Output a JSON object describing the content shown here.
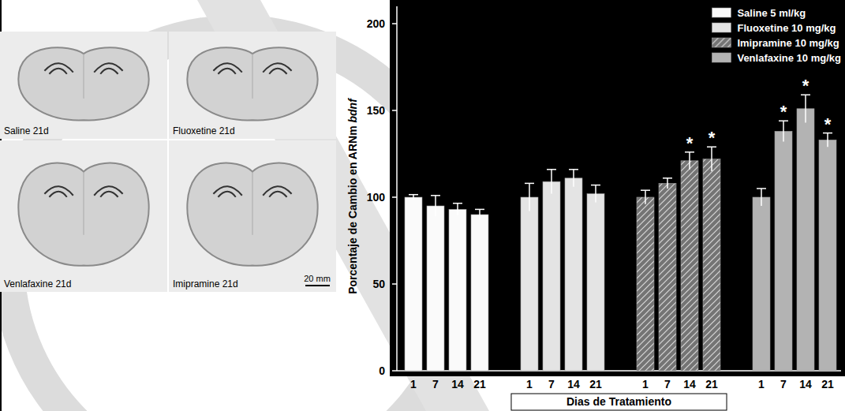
{
  "chart_data": {
    "type": "bar",
    "categories": [
      "1",
      "7",
      "14",
      "21"
    ],
    "xlabel": "Dias de Tratamiento",
    "ylabel": "Porcentaje de Cambio en ARNm",
    "ylabel_gene": "bdnf",
    "ylim": [
      0,
      210
    ],
    "yticks": [
      0,
      50,
      100,
      150,
      200
    ],
    "grid": false,
    "legend": "upper right",
    "series": [
      {
        "name": "Saline 5 ml/kg",
        "color": "#fafafa",
        "values": [
          100,
          95,
          93,
          90
        ],
        "errors": [
          1.5,
          6,
          3.5,
          3
        ],
        "marks": [
          null,
          null,
          null,
          null
        ]
      },
      {
        "name": "Fluoxetine 10 mg/kg",
        "color": "#e4e4e4",
        "values": [
          100,
          109,
          111,
          102
        ],
        "errors": [
          8,
          7,
          5,
          5
        ],
        "marks": [
          null,
          null,
          null,
          null
        ]
      },
      {
        "name": "Imipramine 10 mg/kg",
        "color": "#747474",
        "line_style": "hatched",
        "values": [
          100,
          108,
          121,
          122
        ],
        "errors": [
          4,
          3,
          5,
          7
        ],
        "marks": [
          null,
          null,
          "*",
          "*"
        ]
      },
      {
        "name": "Venlafaxine 10 mg/kg",
        "color": "#b3b3b3",
        "values": [
          100,
          138,
          151,
          133
        ],
        "errors": [
          5,
          6,
          8,
          4
        ],
        "marks": [
          null,
          "*",
          "*",
          "*"
        ]
      }
    ]
  },
  "image_panels": {
    "panels": [
      "Saline 21d",
      "Fluoxetine 21d",
      "Venlafaxine 21d",
      "Imipramine 21d"
    ],
    "scale_bar": "20 mm"
  }
}
